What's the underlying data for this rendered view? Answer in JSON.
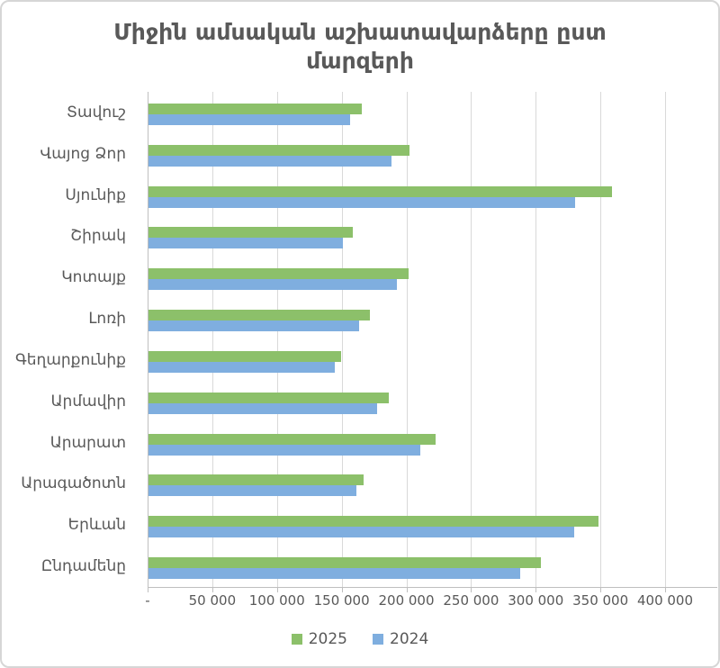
{
  "title": "Միջին ամսական աշխատավարձերը ըստ մարզերի",
  "colors": {
    "series_2025": "#8CC06A",
    "series_2024": "#7FAEDF",
    "gridline": "#d9d9d9",
    "axis_line": "#bfbfbf",
    "text": "#595959",
    "frame_border": "#d6d6d6",
    "background": "#ffffff"
  },
  "chart_data": {
    "type": "bar",
    "orientation": "horizontal",
    "title": "Միջին ամսական աշխատավարձերը ըստ մարզերի",
    "categories": [
      "Տավուշ",
      "Վայոց Ձոր",
      "Սյունիք",
      "Շիրակ",
      "Կոտայք",
      "Լոռի",
      "Գեղարքունիք",
      "Արմավիր",
      "Արարատ",
      "Արագածոտն",
      "Երևան",
      "Ընդամենը"
    ],
    "series": [
      {
        "name": "2025",
        "color": "#8CC06A",
        "values": [
          165000,
          202000,
          358000,
          158000,
          201000,
          171000,
          149000,
          186000,
          222000,
          166000,
          348000,
          303000
        ]
      },
      {
        "name": "2024",
        "color": "#7FAEDF",
        "values": [
          156000,
          188000,
          330000,
          150000,
          192000,
          163000,
          144000,
          177000,
          210000,
          161000,
          329000,
          287000
        ]
      }
    ],
    "xlabel": "",
    "ylabel": "",
    "xlim": [
      0,
      400000
    ],
    "x_tick_step": 50000,
    "x_tick_labels": [
      "-",
      "50 000",
      "100 000",
      "150 000",
      "200 000",
      "250 000",
      "300 000",
      "350 000",
      "400 000"
    ],
    "grid": true,
    "legend_position": "bottom"
  }
}
